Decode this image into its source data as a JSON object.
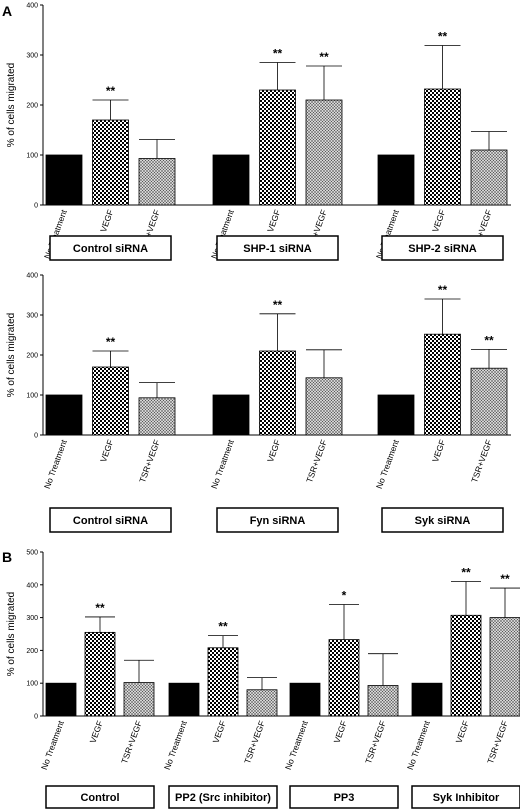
{
  "panel_labels": [
    "A",
    "B"
  ],
  "chart_data": [
    {
      "type": "bar",
      "panel": "A",
      "ylabel": "% of cells migrated",
      "ylim": [
        0,
        400
      ],
      "yticks": [
        0,
        100,
        200,
        300,
        400
      ],
      "categories": [
        "No Treatment",
        "VEGF",
        "TSR+VEGF"
      ],
      "groups": [
        {
          "name": "Control siRNA",
          "values": [
            100,
            170,
            93
          ],
          "errors": [
            0,
            40,
            38
          ],
          "significance": [
            "",
            "**",
            ""
          ]
        },
        {
          "name": "SHP-1 siRNA",
          "values": [
            100,
            230,
            210
          ],
          "errors": [
            0,
            55,
            68
          ],
          "significance": [
            "",
            "**",
            "**"
          ]
        },
        {
          "name": "SHP-2 siRNA",
          "values": [
            100,
            232,
            110
          ],
          "errors": [
            0,
            87,
            37
          ],
          "significance": [
            "",
            "**",
            ""
          ]
        }
      ]
    },
    {
      "type": "bar",
      "panel": "A",
      "ylabel": "% of cells migrated",
      "ylim": [
        0,
        400
      ],
      "yticks": [
        0,
        100,
        200,
        300,
        400
      ],
      "categories": [
        "No Treatment",
        "VEGF",
        "TSR+VEGF"
      ],
      "groups": [
        {
          "name": "Control siRNA",
          "values": [
            100,
            170,
            93
          ],
          "errors": [
            0,
            40,
            38
          ],
          "significance": [
            "",
            "**",
            ""
          ]
        },
        {
          "name": "Fyn siRNA",
          "values": [
            100,
            210,
            143
          ],
          "errors": [
            0,
            93,
            70
          ],
          "significance": [
            "",
            "**",
            ""
          ]
        },
        {
          "name": "Syk siRNA",
          "values": [
            100,
            252,
            167
          ],
          "errors": [
            0,
            88,
            47
          ],
          "significance": [
            "",
            "**",
            "**"
          ]
        }
      ]
    },
    {
      "type": "bar",
      "panel": "B",
      "ylabel": "% of cells migrated",
      "ylim": [
        0,
        500
      ],
      "yticks": [
        0,
        100,
        200,
        300,
        400,
        500
      ],
      "categories": [
        "No Treatment",
        "VEGF",
        "TSR+VEGF"
      ],
      "groups": [
        {
          "name": "Control",
          "values": [
            100,
            255,
            102
          ],
          "errors": [
            0,
            47,
            68
          ],
          "significance": [
            "",
            "**",
            ""
          ]
        },
        {
          "name": "PP2 (Src inhibitor)",
          "values": [
            100,
            208,
            80
          ],
          "errors": [
            0,
            37,
            37
          ],
          "significance": [
            "",
            "**",
            ""
          ]
        },
        {
          "name": "PP3",
          "values": [
            100,
            233,
            93
          ],
          "errors": [
            0,
            107,
            97
          ],
          "significance": [
            "",
            "*",
            ""
          ]
        },
        {
          "name": "Syk Inhibitor",
          "values": [
            100,
            307,
            300
          ],
          "errors": [
            0,
            103,
            90
          ],
          "significance": [
            "",
            "**",
            "**"
          ]
        }
      ]
    }
  ]
}
